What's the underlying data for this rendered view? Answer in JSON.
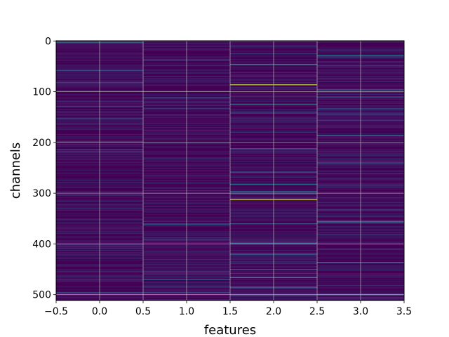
{
  "chart_data": {
    "type": "heatmap",
    "title": "",
    "xlabel": "features",
    "ylabel": "channels",
    "xlim": [
      -0.5,
      3.5
    ],
    "ylim": [
      511.5,
      -0.5
    ],
    "y_inverted": true,
    "grid": true,
    "colormap": "viridis",
    "n_rows": 512,
    "columns": [
      0,
      1,
      2,
      3
    ],
    "x_ticks": [
      -0.5,
      0.0,
      0.5,
      1.0,
      1.5,
      2.0,
      2.5,
      3.0,
      3.5
    ],
    "x_tick_labels": [
      "−0.5",
      "0.0",
      "0.5",
      "1.0",
      "1.5",
      "2.0",
      "2.5",
      "3.0",
      "3.5"
    ],
    "y_ticks": [
      0,
      100,
      200,
      300,
      400,
      500
    ],
    "y_tick_labels": [
      "0",
      "100",
      "200",
      "300",
      "400",
      "500"
    ],
    "value_range": [
      0,
      1
    ],
    "bright_rows": [
      {
        "col": 0,
        "row": 3,
        "value": 0.35
      },
      {
        "col": 0,
        "row": 58,
        "value": 0.22
      },
      {
        "col": 0,
        "row": 82,
        "value": 0.25
      },
      {
        "col": 0,
        "row": 129,
        "value": 0.22
      },
      {
        "col": 0,
        "row": 214,
        "value": 0.2
      },
      {
        "col": 0,
        "row": 496,
        "value": 0.3
      },
      {
        "col": 1,
        "row": 37,
        "value": 0.22
      },
      {
        "col": 1,
        "row": 362,
        "value": 0.3
      },
      {
        "col": 1,
        "row": 455,
        "value": 0.25
      },
      {
        "col": 1,
        "row": 470,
        "value": 0.28
      },
      {
        "col": 1,
        "row": 496,
        "value": 0.3
      },
      {
        "col": 2,
        "row": 46,
        "value": 0.55
      },
      {
        "col": 2,
        "row": 86,
        "value": 0.9
      },
      {
        "col": 2,
        "row": 125,
        "value": 0.45
      },
      {
        "col": 2,
        "row": 212,
        "value": 0.3
      },
      {
        "col": 2,
        "row": 258,
        "value": 0.35
      },
      {
        "col": 2,
        "row": 282,
        "value": 0.38
      },
      {
        "col": 2,
        "row": 296,
        "value": 0.3
      },
      {
        "col": 2,
        "row": 312,
        "value": 0.95
      },
      {
        "col": 2,
        "row": 360,
        "value": 0.3
      },
      {
        "col": 2,
        "row": 398,
        "value": 0.35
      },
      {
        "col": 2,
        "row": 420,
        "value": 0.33
      },
      {
        "col": 2,
        "row": 450,
        "value": 0.3
      },
      {
        "col": 2,
        "row": 466,
        "value": 0.5
      },
      {
        "col": 2,
        "row": 486,
        "value": 0.35
      },
      {
        "col": 2,
        "row": 500,
        "value": 0.3
      },
      {
        "col": 3,
        "row": 28,
        "value": 0.42
      },
      {
        "col": 3,
        "row": 96,
        "value": 0.35
      },
      {
        "col": 3,
        "row": 110,
        "value": 0.3
      },
      {
        "col": 3,
        "row": 186,
        "value": 0.4
      },
      {
        "col": 3,
        "row": 240,
        "value": 0.3
      },
      {
        "col": 3,
        "row": 356,
        "value": 0.45
      },
      {
        "col": 3,
        "row": 436,
        "value": 0.4
      },
      {
        "col": 3,
        "row": 500,
        "value": 0.35
      }
    ]
  }
}
